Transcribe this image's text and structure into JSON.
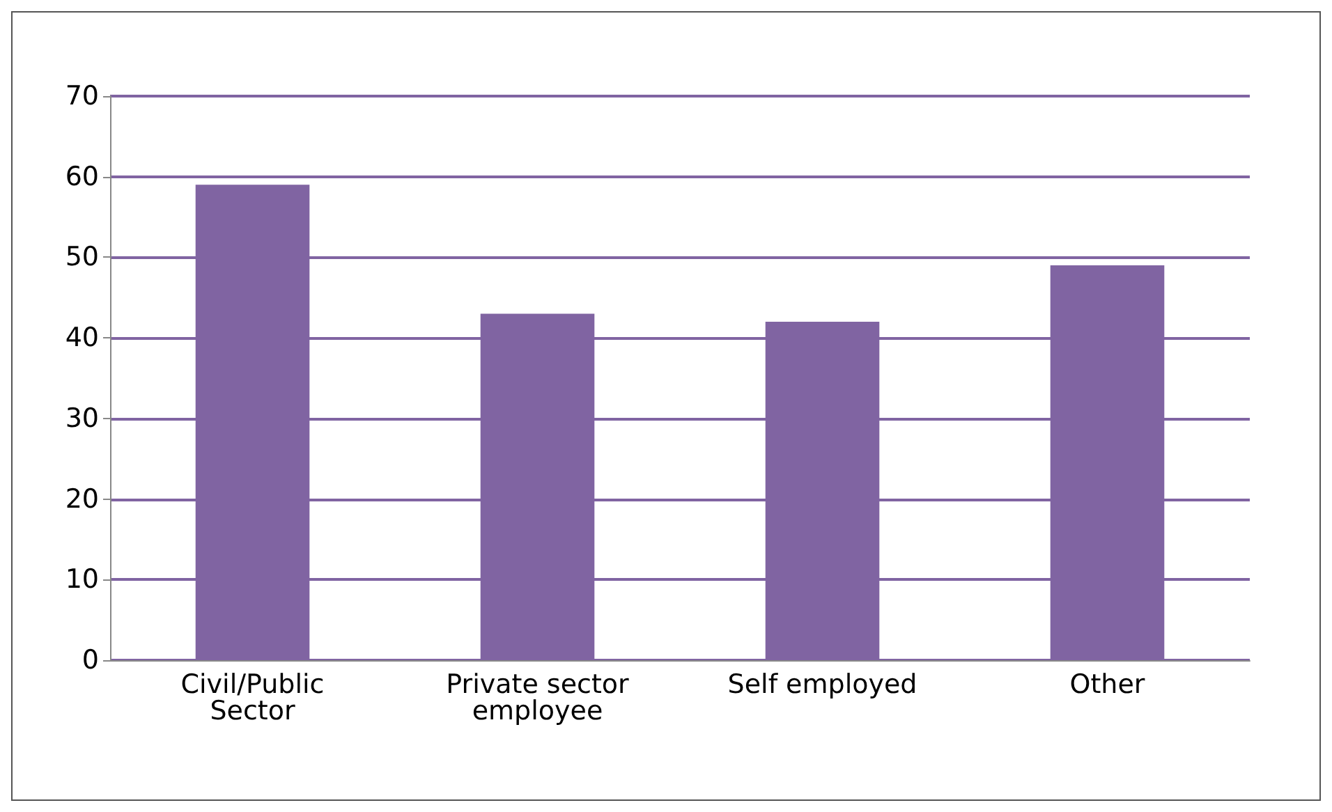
{
  "chart_data": {
    "type": "bar",
    "categories": [
      "Civil/Public Sector",
      "Private sector employee",
      "Self employed",
      "Other"
    ],
    "values": [
      59,
      43,
      42,
      49
    ],
    "color": "#8064a2",
    "ylim": [
      0,
      70
    ],
    "yticks": [
      0,
      10,
      20,
      30,
      40,
      50,
      60,
      70
    ],
    "grid": "y"
  }
}
